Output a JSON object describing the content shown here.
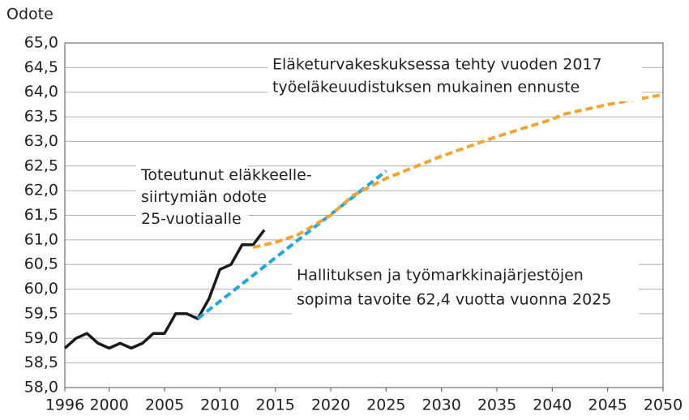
{
  "chart_data": {
    "type": "line",
    "y_label": "Odote",
    "xlim": [
      1996,
      2050
    ],
    "xticks": [
      1996,
      2000,
      2005,
      2010,
      2015,
      2020,
      2025,
      2030,
      2035,
      2040,
      2045,
      2050
    ],
    "ylim": [
      58,
      65
    ],
    "yticks": [
      {
        "value": 58,
        "label": "58,0"
      },
      {
        "value": 58.5,
        "label": "58,5"
      },
      {
        "value": 59,
        "label": "59,0"
      },
      {
        "value": 59.5,
        "label": "59,5"
      },
      {
        "value": 60,
        "label": "60,0"
      },
      {
        "value": 60.5,
        "label": "60,5"
      },
      {
        "value": 61,
        "label": "61,0"
      },
      {
        "value": 61.5,
        "label": "61,5"
      },
      {
        "value": 62,
        "label": "62,0"
      },
      {
        "value": 62.5,
        "label": "62,5"
      },
      {
        "value": 63,
        "label": "63,0"
      },
      {
        "value": 63.5,
        "label": "63,5"
      },
      {
        "value": 64,
        "label": "64,0"
      },
      {
        "value": 64.5,
        "label": "64,5"
      },
      {
        "value": 65,
        "label": "65,0"
      }
    ],
    "grid": true,
    "series": [
      {
        "color": "#1a1a1a",
        "dashed": false,
        "x": [
          1996,
          1997,
          1998,
          1999,
          2000,
          2001,
          2002,
          2003,
          2004,
          2005,
          2006,
          2007,
          2008,
          2009,
          2010,
          2011,
          2012,
          2013,
          2014
        ],
        "values": [
          58.8,
          59.0,
          59.1,
          58.9,
          58.8,
          58.9,
          58.8,
          58.9,
          59.1,
          59.1,
          59.5,
          59.5,
          59.4,
          59.8,
          60.4,
          60.5,
          60.9,
          60.9,
          61.2
        ]
      },
      {
        "color": "#1ea7e1",
        "dashed": true,
        "x": [
          2008,
          2025
        ],
        "values": [
          59.4,
          62.4
        ]
      },
      {
        "color": "#f5a431",
        "dashed": true,
        "x": [
          2013,
          2015,
          2017,
          2020,
          2022,
          2025,
          2030,
          2035,
          2040,
          2041,
          2045,
          2050
        ],
        "values": [
          60.85,
          60.95,
          61.1,
          61.5,
          61.9,
          62.25,
          62.7,
          63.1,
          63.45,
          63.55,
          63.75,
          63.95
        ]
      }
    ],
    "annotations": [
      {
        "lines": [
          "Eläketurvakeskuksessa tehty vuoden 2017",
          "työeläkeuudistuksen mukainen ennuste"
        ]
      },
      {
        "lines": [
          "Toteutunut eläkkeelle-",
          "siirtymiän odote",
          "25-vuotiaalle"
        ]
      },
      {
        "lines": [
          "Hallituksen ja työmarkkinajärjestöjen",
          "sopima tavoite 62,4 vuotta vuonna 2025"
        ]
      }
    ]
  }
}
